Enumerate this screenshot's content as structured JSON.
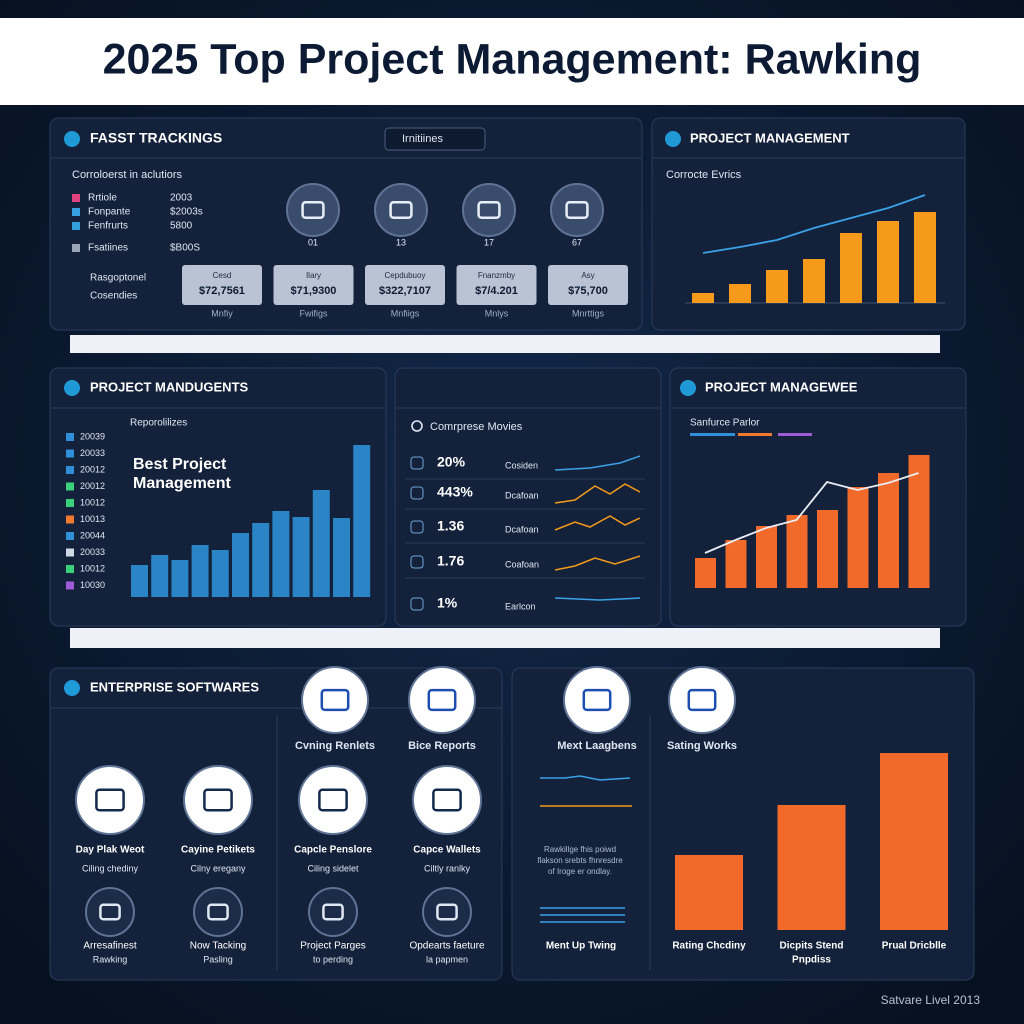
{
  "header": {
    "title": "2025 Top Project Management: Rawking"
  },
  "fast_tracking": {
    "title": "FASST TRACKINGS",
    "search": "Irnitiines",
    "list_title": "Corroloerst in aclutiors",
    "rows": [
      [
        "Rrtiole",
        "2003"
      ],
      [
        "Fonpante",
        "$2003s"
      ],
      [
        "Fenfrurts",
        "5800"
      ],
      [
        "Fsatiines",
        "$B00S"
      ]
    ],
    "links": [
      "Rasgoptonel",
      "Cosendies"
    ],
    "icons": [
      "01",
      "13",
      "17",
      "67"
    ],
    "cards": [
      {
        "label": "Cesd",
        "value": "$72,7561",
        "caption": "Mnfiy"
      },
      {
        "label": "Ilary",
        "value": "$71,9300",
        "caption": "Fwifigs"
      },
      {
        "label": "Cepdubuoy",
        "value": "$322,7107",
        "caption": "Mnfiigs"
      },
      {
        "label": "Fnanzmby",
        "value": "$7/4.201",
        "caption": "Mnlys"
      },
      {
        "label": "Asy",
        "value": "$75,700",
        "caption": "Mnrttigs"
      }
    ]
  },
  "corporate": {
    "title": "PROJECT MANAGEMENT",
    "subtitle": "Corrocte Evrics",
    "bars": [
      10,
      19,
      33,
      44,
      70,
      82,
      91
    ],
    "line": [
      50,
      56,
      63,
      75,
      85,
      95,
      108
    ]
  },
  "reports": {
    "title": "PROJECT MANDUGENTS",
    "subtitle": "Reporolilizes",
    "headline": [
      "Best Project",
      "Management"
    ],
    "legend": [
      "20039",
      "20033",
      "20012",
      "20012",
      "10012",
      "10013",
      "20044",
      "20033",
      "10012",
      "10030"
    ],
    "bars": [
      32,
      42,
      37,
      52,
      47,
      64,
      74,
      86,
      80,
      107,
      79,
      152
    ]
  },
  "movies": {
    "title": "Comrprese Movies",
    "rows": [
      {
        "value": "20%",
        "label": "Cosiden"
      },
      {
        "value": "443%",
        "label": "Dcafoan"
      },
      {
        "value": "1.36",
        "label": "Dcafoan"
      },
      {
        "value": "1.76",
        "label": "Coafoan"
      },
      {
        "value": "1%",
        "label": "Earlcon"
      }
    ]
  },
  "source": {
    "title": "PROJECT MANAGEWEE",
    "subtitle": "Sanfurce Parlor",
    "bars": [
      30,
      48,
      62,
      73,
      78,
      101,
      115,
      133
    ],
    "line": [
      35,
      48,
      60,
      68,
      106,
      98,
      105,
      115
    ]
  },
  "enterprise": {
    "title": "ENTERPRISE SOFTWARES",
    "top_items": [
      "Cvning Renlets",
      "Bice Reports"
    ],
    "items": [
      [
        "Day Plak Weot",
        "Ciling chediny"
      ],
      [
        "Cayine Petikets",
        "Cilny eregany"
      ],
      [
        "Capcle Penslore",
        "Ciling sidelet"
      ],
      [
        "Capce Wallets",
        "Ciltly ranlky"
      ],
      [
        "Arresafinest",
        "Rawking"
      ],
      [
        "Now Tacking",
        "Pasling"
      ],
      [
        "Project Parges",
        "to perding"
      ],
      [
        "Opdearts faeture",
        "la papmen"
      ]
    ]
  },
  "ratings": {
    "icon_labels": [
      "Mext Laagbens",
      "Sating Works"
    ],
    "note": [
      "Rawkillge fhis poiwd",
      "flakson srebts fhnresdre",
      "of Iroge er ondlay."
    ],
    "trend_label": "Ment Up Twing",
    "bars": [
      75,
      125,
      177
    ],
    "bar_labels": [
      [
        "Rating Chcdiny"
      ],
      [
        "Dicpits Stend",
        "Pnpdiss"
      ],
      [
        "Prual Dricblle"
      ]
    ]
  },
  "footer": "Satvare Livel 2013"
}
